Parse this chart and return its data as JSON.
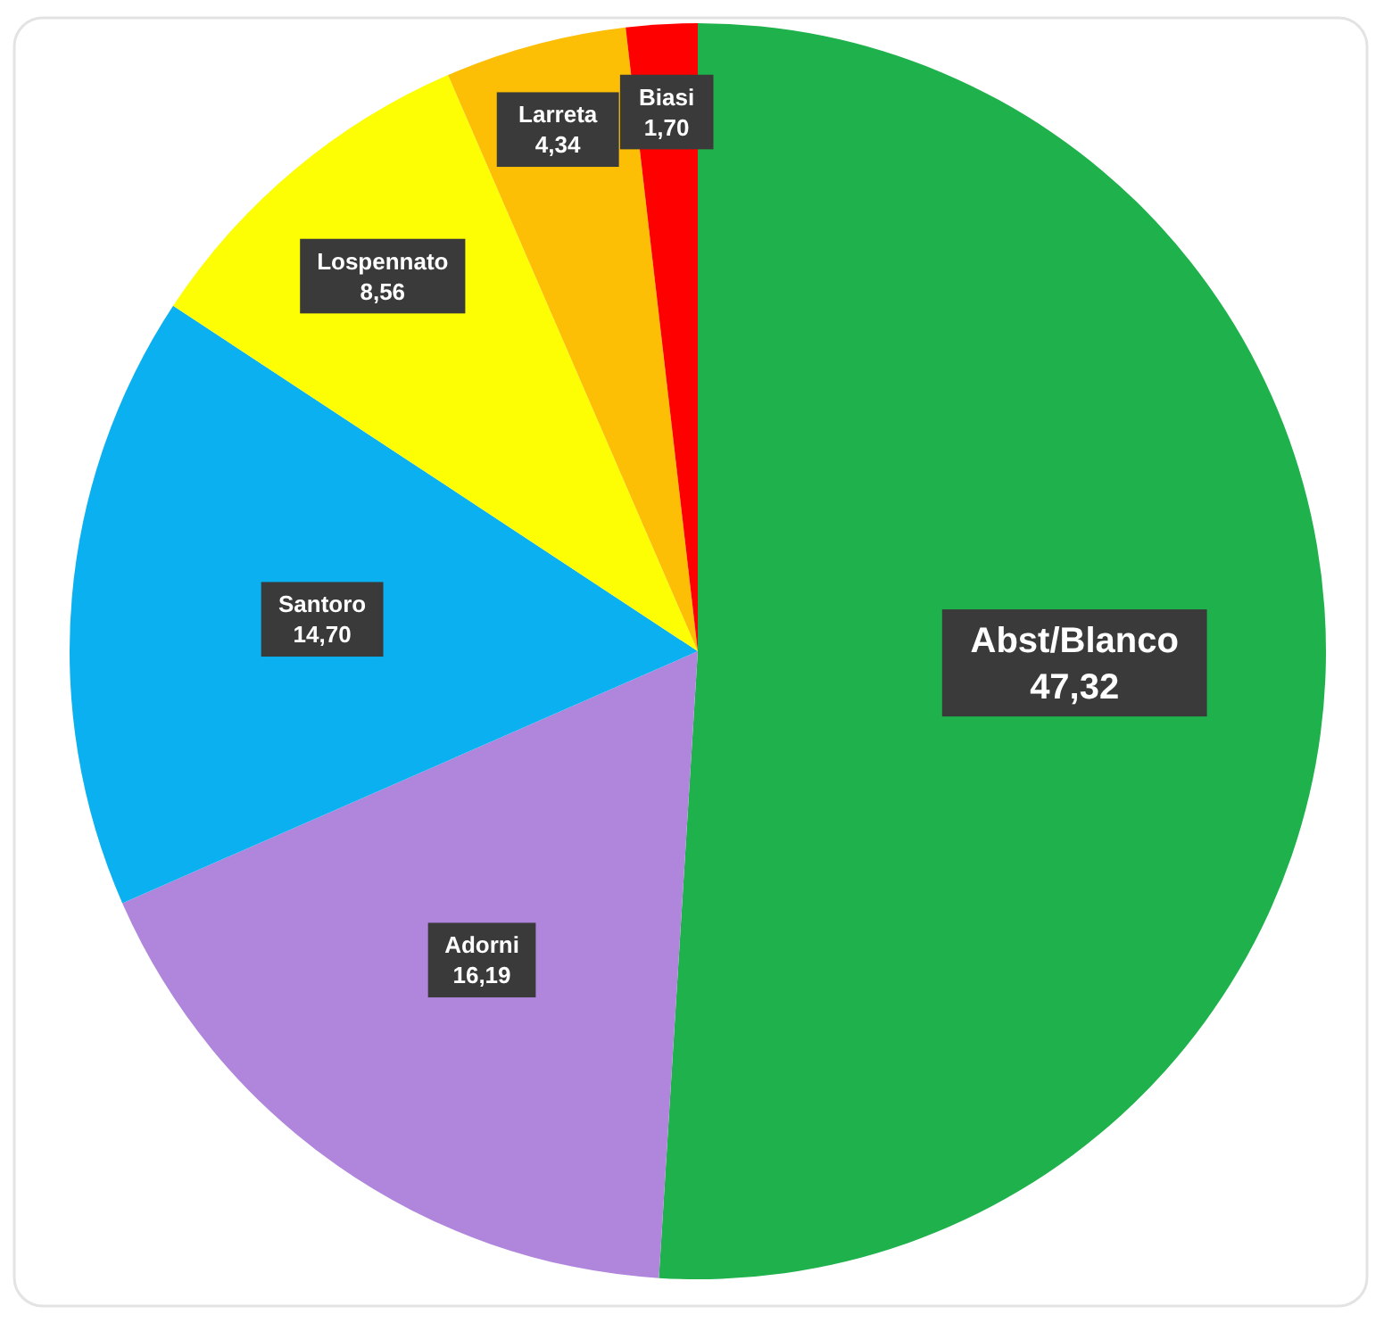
{
  "chart_data": {
    "type": "pie",
    "categories": [
      "Abst/Blanco",
      "Adorni",
      "Santoro",
      "Lospennato",
      "Larreta",
      "Biasi"
    ],
    "values": [
      47.32,
      16.19,
      14.7,
      8.56,
      4.34,
      1.7
    ],
    "value_labels": [
      "47,32",
      "16,19",
      "14,70",
      "8,56",
      "4,34",
      "1,70"
    ],
    "colors": [
      "#1fb14b",
      "#b086dc",
      "#0ab0ef",
      "#fdfd04",
      "#fcbf05",
      "#fe0000"
    ],
    "legend": false
  }
}
